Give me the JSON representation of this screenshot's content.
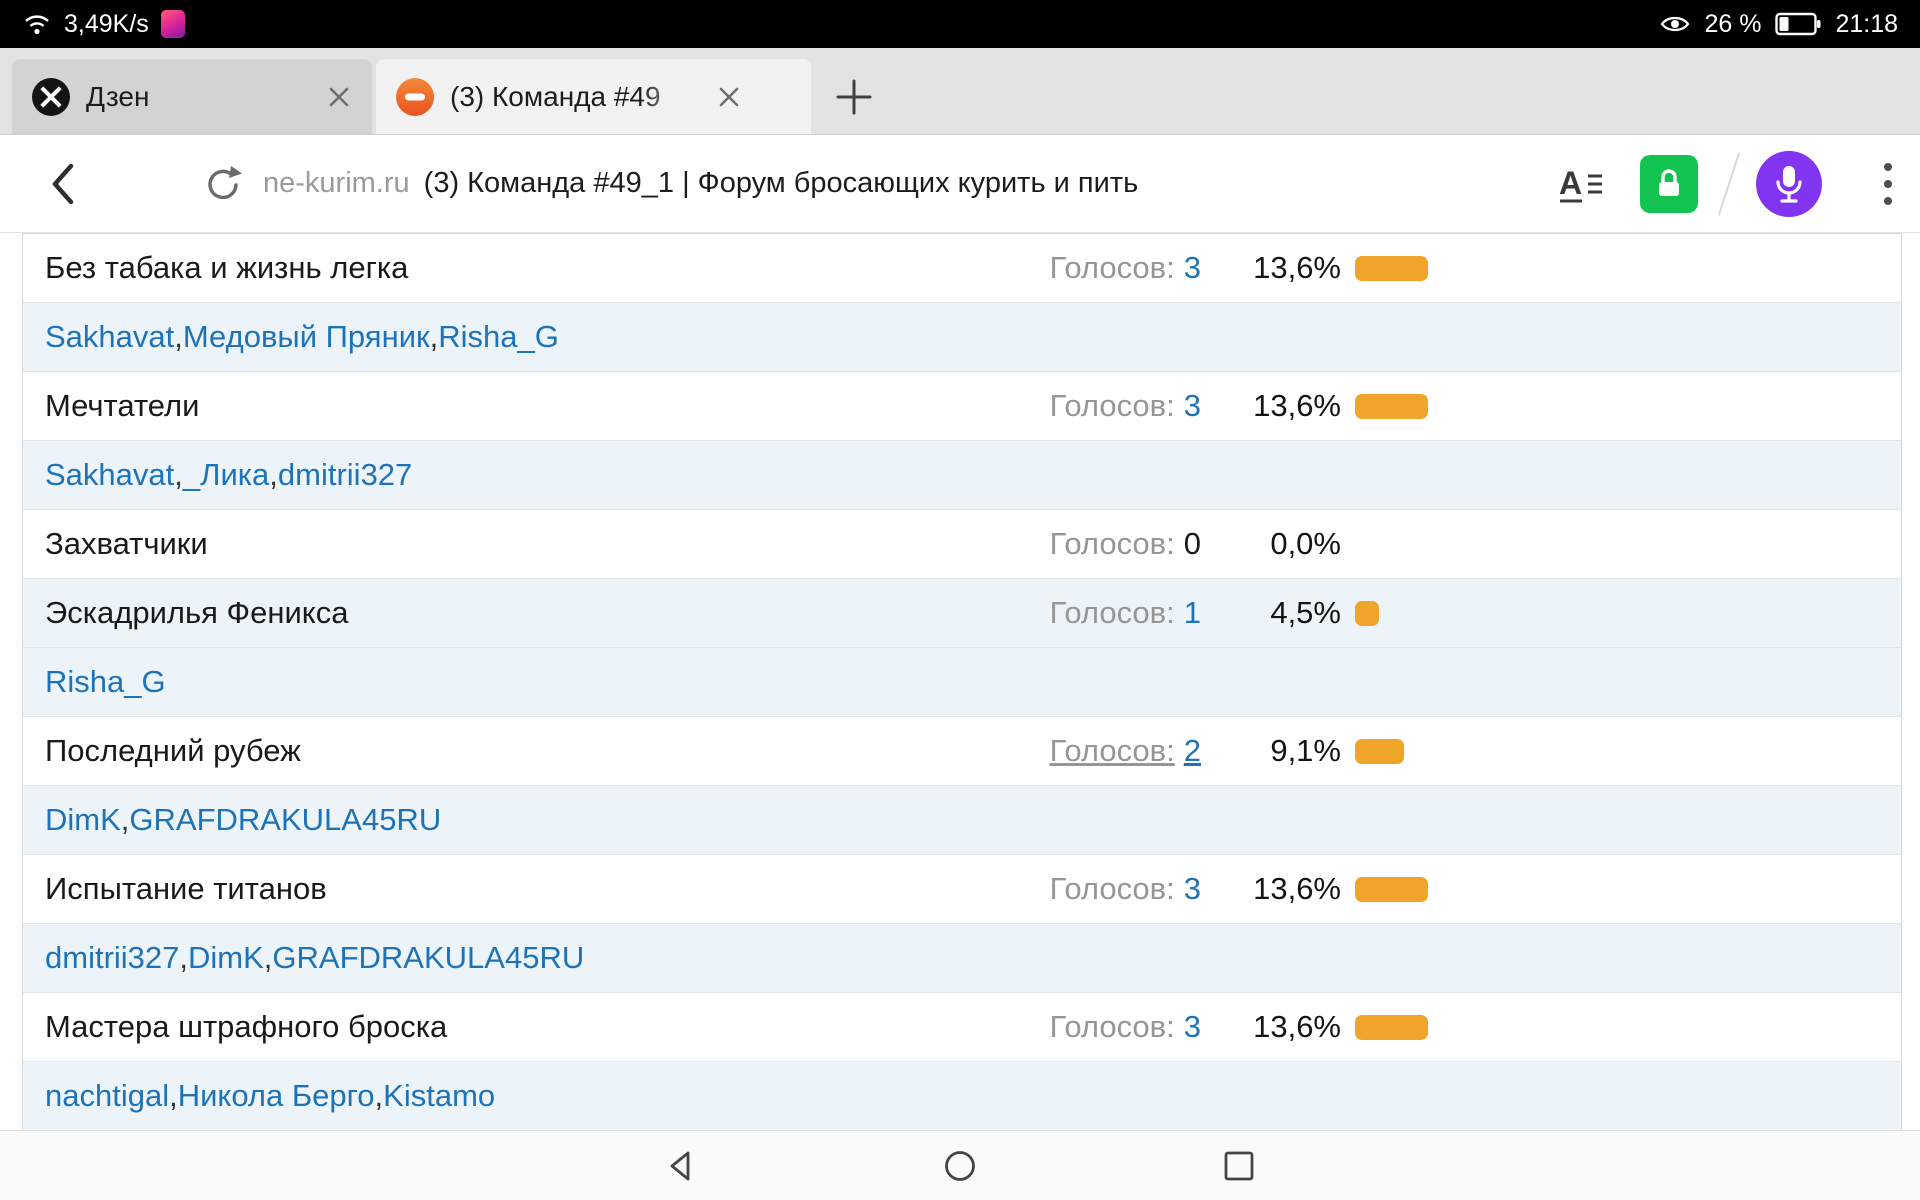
{
  "status_bar": {
    "network_speed": "3,49K/s",
    "visibility_percent": "26 %",
    "time": "21:18"
  },
  "tabs": [
    {
      "title": "Дзен",
      "favicon": "zen-icon"
    },
    {
      "title": "(3) Команда #49",
      "favicon": "forum-notification-icon"
    }
  ],
  "address_bar": {
    "domain": "ne-kurim.ru",
    "page_title": "(3) Команда #49_1 | Форум бросающих курить и пить"
  },
  "poll": {
    "votes_label": "Голосов:",
    "options": [
      {
        "name": "Без табака и жизнь легка",
        "votes": "3",
        "percent": "13,6%",
        "percent_value": 13.6,
        "voters": [
          "Sakhavat",
          "Медовый Пряник",
          "Risha_G"
        ]
      },
      {
        "name": "Мечтатели",
        "votes": "3",
        "percent": "13,6%",
        "percent_value": 13.6,
        "voters": [
          "Sakhavat",
          "_Лика",
          "dmitrii327"
        ]
      },
      {
        "name": "Захватчики",
        "votes": "0",
        "percent": "0,0%",
        "percent_value": 0,
        "voters": []
      },
      {
        "name": "Эскадрилья Феникса",
        "votes": "1",
        "percent": "4,5%",
        "percent_value": 4.5,
        "voters": [
          "Risha_G"
        ],
        "tinted": true
      },
      {
        "name": "Последний рубеж",
        "votes": "2",
        "percent": "9,1%",
        "percent_value": 9.1,
        "voters": [
          "DimK",
          "GRAFDRAKULA45RU"
        ],
        "votes_underlined": true
      },
      {
        "name": "Испытание титанов",
        "votes": "3",
        "percent": "13,6%",
        "percent_value": 13.6,
        "voters": [
          "dmitrii327",
          "DimK",
          "GRAFDRAKULA45RU"
        ]
      },
      {
        "name": "Мастера штрафного броска",
        "votes": "3",
        "percent": "13,6%",
        "percent_value": 13.6,
        "voters": [
          "nachtigal",
          "Никола Берго",
          "Kistamo"
        ]
      }
    ]
  },
  "colors": {
    "bar_orange": "#f0a42a",
    "link_blue": "#1e73b8",
    "lock_green": "#12c44f",
    "mic_purple": "#8135f1"
  }
}
